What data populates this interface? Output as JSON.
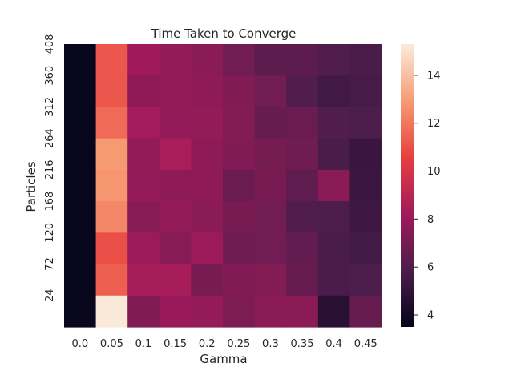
{
  "chart_data": {
    "type": "heatmap",
    "title": "Time Taken to Converge",
    "xlabel": "Gamma",
    "ylabel": "Particles",
    "x": [
      "0.0",
      "0.05",
      "0.1",
      "0.15",
      "0.2",
      "0.25",
      "0.3",
      "0.35",
      "0.4",
      "0.45"
    ],
    "y": [
      "408",
      "360",
      "312",
      "264",
      "216",
      "168",
      "120",
      "72",
      "24"
    ],
    "values": [
      [
        3.6,
        11.2,
        8.2,
        7.8,
        7.6,
        6.9,
        6.3,
        6.3,
        6.0,
        5.8
      ],
      [
        3.6,
        11.2,
        7.7,
        7.8,
        7.7,
        7.3,
        6.9,
        6.0,
        5.5,
        5.7
      ],
      [
        3.6,
        11.7,
        8.3,
        7.9,
        7.8,
        7.4,
        6.6,
        6.7,
        6.0,
        5.9
      ],
      [
        3.6,
        12.9,
        7.8,
        8.5,
        7.7,
        7.3,
        7.0,
        6.8,
        5.8,
        5.2
      ],
      [
        3.6,
        12.8,
        7.9,
        7.7,
        7.7,
        6.7,
        7.1,
        6.4,
        7.6,
        5.3
      ],
      [
        3.6,
        12.4,
        7.5,
        7.8,
        7.6,
        7.1,
        6.9,
        6.0,
        5.9,
        5.4
      ],
      [
        3.6,
        11.0,
        8.1,
        7.5,
        8.1,
        6.8,
        6.9,
        6.5,
        5.8,
        5.6
      ],
      [
        3.6,
        11.4,
        8.4,
        8.4,
        7.1,
        7.3,
        7.4,
        6.6,
        5.8,
        5.9
      ],
      [
        3.7,
        15.2,
        7.3,
        8.0,
        7.9,
        7.2,
        7.6,
        7.6,
        4.7,
        6.6
      ]
    ],
    "colorbar": {
      "range": [
        3.5,
        15.3
      ],
      "ticks": [
        "4",
        "6",
        "8",
        "10",
        "12",
        "14"
      ]
    },
    "colors": {
      "0": "#03051A",
      "0.2": "#4C1D4B",
      "0.4": "#A11A5B",
      "0.6": "#E83F3F",
      "0.8": "#F69C73",
      "1": "#FAEBDD"
    }
  }
}
